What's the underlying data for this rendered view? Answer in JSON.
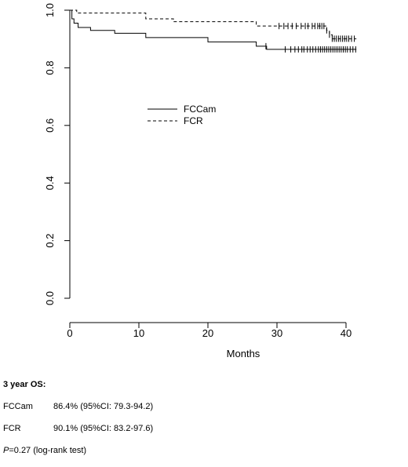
{
  "chart_data": {
    "type": "line",
    "title": "",
    "xlabel": "Months",
    "ylabel": "",
    "xlim": [
      0,
      40
    ],
    "ylim": [
      0.0,
      1.0
    ],
    "x_ticks": [
      "0",
      "10",
      "20",
      "30",
      "40"
    ],
    "y_ticks": [
      "0.0",
      "0.2",
      "0.4",
      "0.6",
      "0.8",
      "1.0"
    ],
    "legend_position": "center",
    "series": [
      {
        "name": "FCCam",
        "line_style": "solid",
        "steps": [
          [
            0,
            1.0
          ],
          [
            0.3,
            0.97
          ],
          [
            0.6,
            0.955
          ],
          [
            1.2,
            0.94
          ],
          [
            3,
            0.93
          ],
          [
            6.5,
            0.92
          ],
          [
            11,
            0.905
          ],
          [
            20,
            0.89
          ],
          [
            27,
            0.875
          ],
          [
            28.5,
            0.864
          ],
          [
            41.5,
            0.864
          ]
        ],
        "censor_x": [
          28.4,
          31.2,
          32.0,
          32.6,
          33.1,
          33.6,
          33.9,
          34.4,
          34.8,
          35.2,
          35.6,
          36.0,
          36.3,
          36.6,
          36.9,
          37.2,
          37.5,
          37.8,
          38.1,
          38.4,
          38.7,
          39.0,
          39.3,
          39.6,
          39.9,
          40.2,
          40.6,
          41.0,
          41.4
        ]
      },
      {
        "name": "FCR",
        "line_style": "dashed",
        "steps": [
          [
            0,
            1.0
          ],
          [
            1,
            0.99
          ],
          [
            11,
            0.97
          ],
          [
            15,
            0.96
          ],
          [
            27,
            0.945
          ],
          [
            37.2,
            0.93
          ],
          [
            37.6,
            0.915
          ],
          [
            38,
            0.901
          ],
          [
            41.5,
            0.901
          ]
        ],
        "censor_x": [
          30.3,
          31.0,
          31.6,
          32.2,
          32.8,
          33.5,
          34.1,
          34.5,
          35.1,
          35.5,
          35.9,
          36.2,
          36.5,
          36.8,
          37.2,
          37.6,
          38.0,
          38.3,
          38.6,
          38.9,
          39.2,
          39.5,
          39.8,
          40.1,
          40.4,
          40.8,
          41.2
        ]
      }
    ]
  },
  "stats": {
    "title": "3 year OS:",
    "rows": [
      {
        "group": "FCCam",
        "value": "86.4% (95%CI: 79.3-94.2)"
      },
      {
        "group": "FCR",
        "value": "90.1% (95%CI: 83.2-97.6)"
      }
    ],
    "p_label": "P",
    "p_rest": "=0.27 (log-rank test)"
  }
}
